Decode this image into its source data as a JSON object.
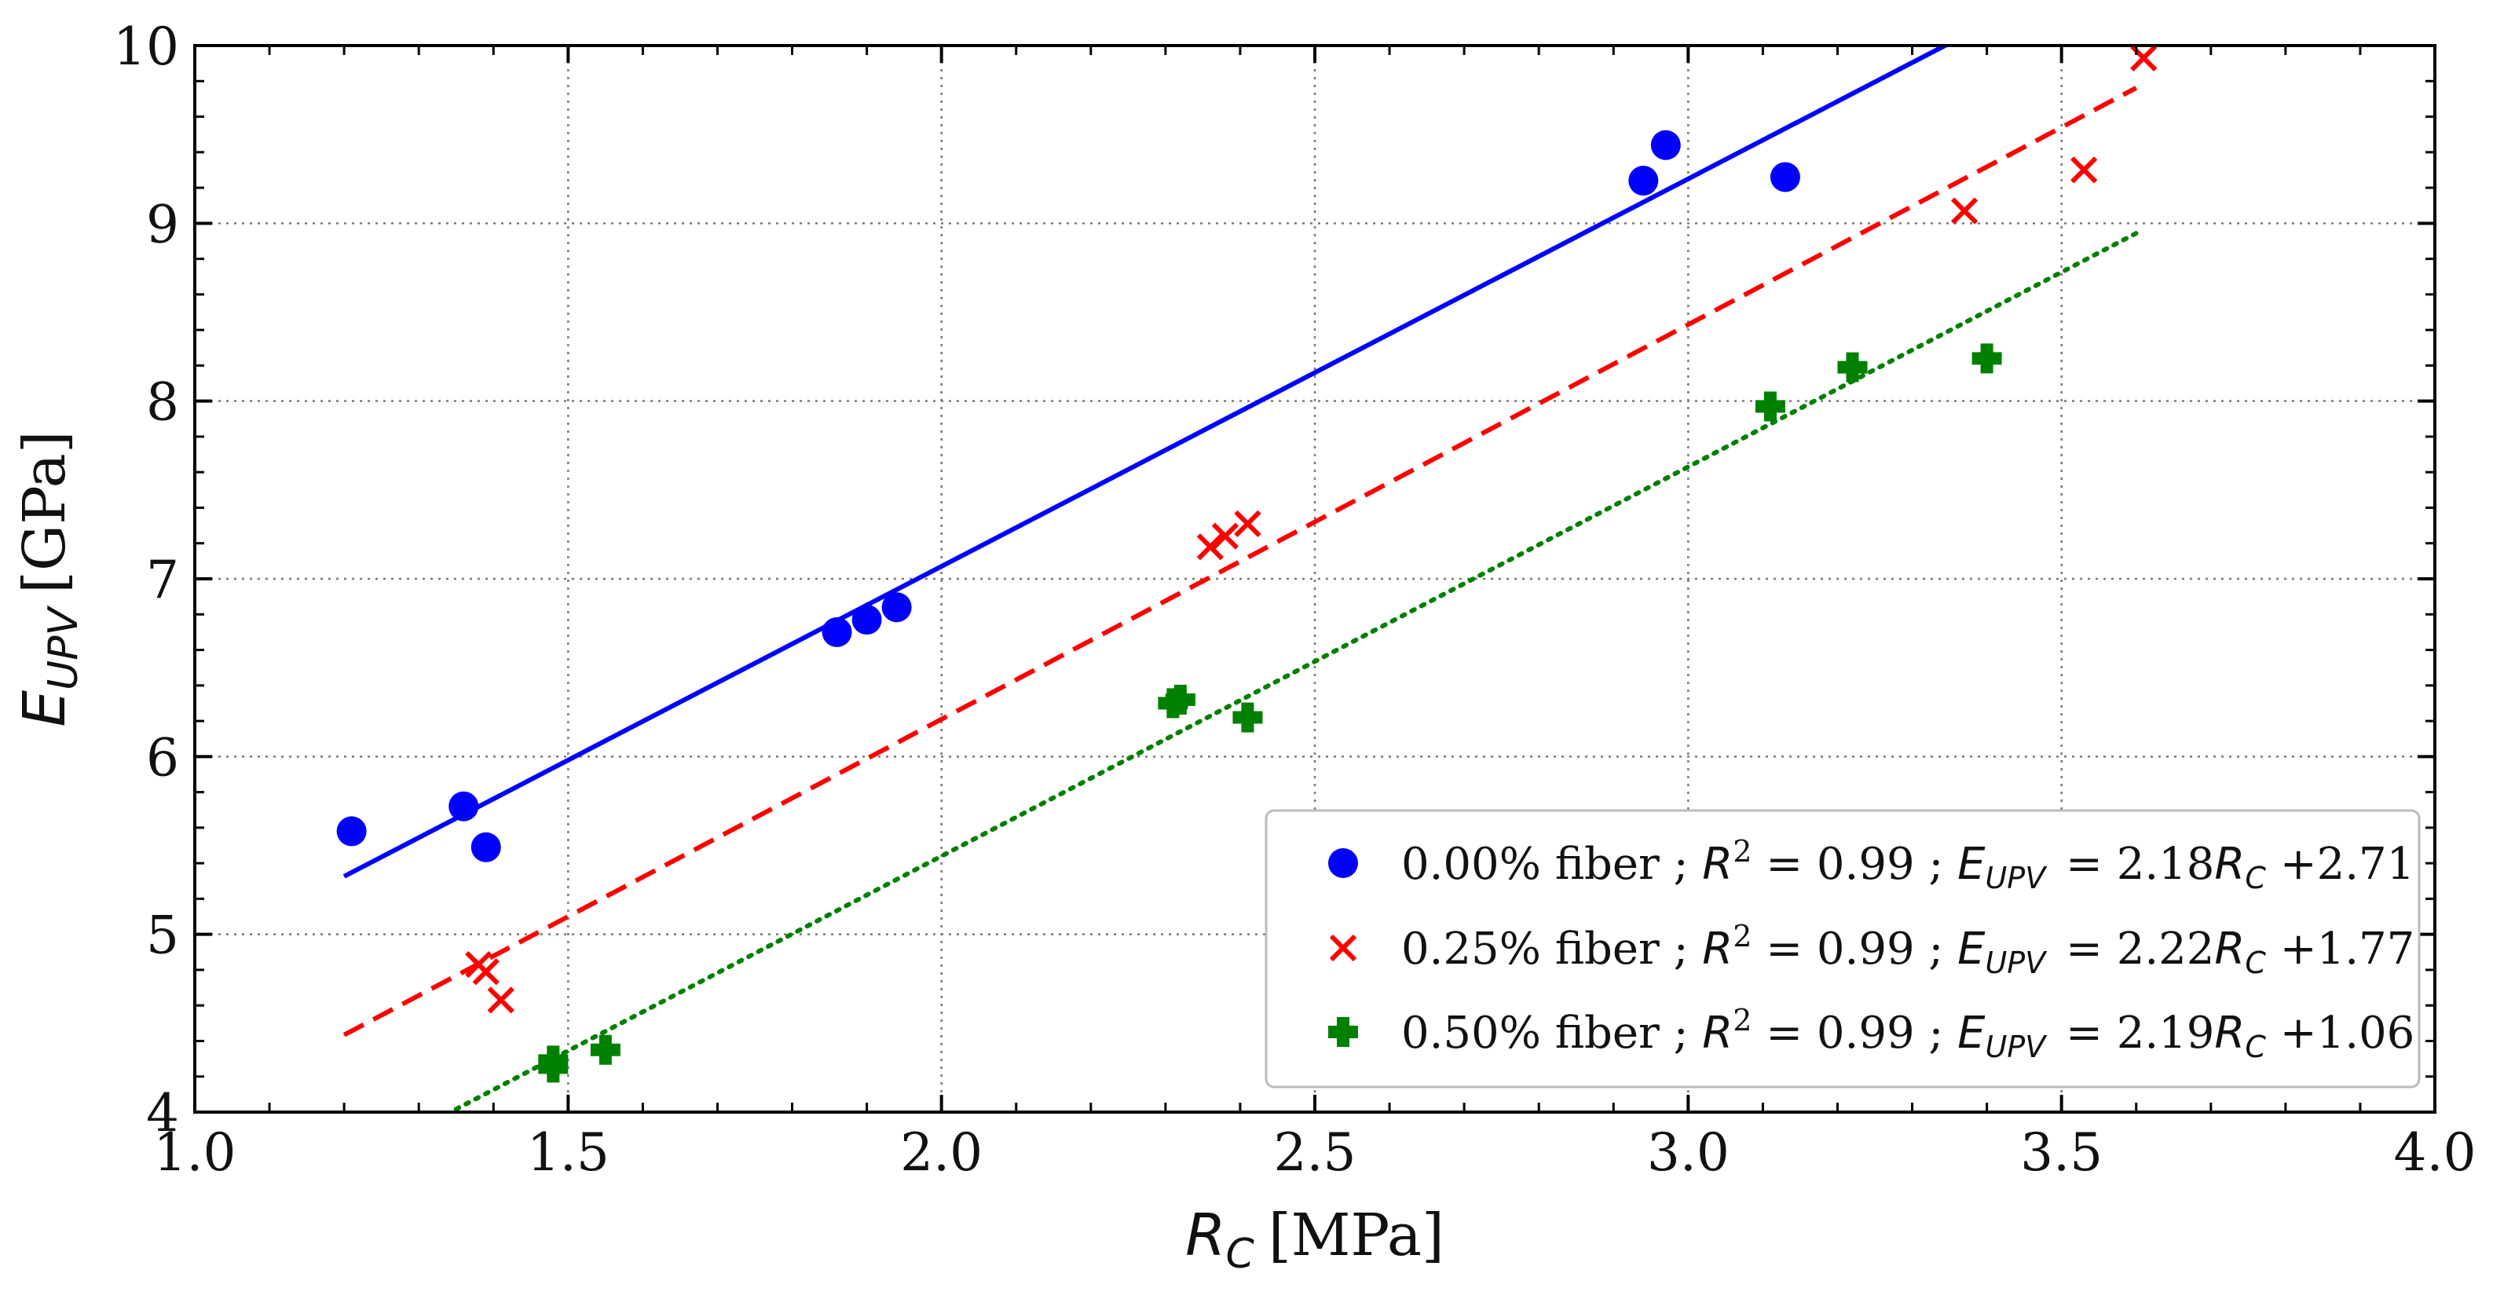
{
  "chart_data": {
    "type": "scatter",
    "title": "",
    "xlabel": {
      "symbol": "R",
      "sub": "C",
      "unit": "[MPa]"
    },
    "ylabel": {
      "symbol": "E",
      "sub": "UPV",
      "unit": "[GPa]"
    },
    "xlim": [
      1.0,
      4.0
    ],
    "ylim": [
      4,
      10
    ],
    "xticks": [
      1.0,
      1.5,
      2.0,
      2.5,
      3.0,
      3.5,
      4.0
    ],
    "xtick_labels": [
      "1.0",
      "1.5",
      "2.0",
      "2.5",
      "3.0",
      "3.5",
      "4.0"
    ],
    "yticks": [
      4,
      5,
      6,
      7,
      8,
      9,
      10
    ],
    "ytick_labels": [
      "4",
      "5",
      "6",
      "7",
      "8",
      "9",
      "10"
    ],
    "grid": true,
    "legend_position": "bottom-right",
    "series": [
      {
        "name": "0.00% fiber",
        "marker": "circle",
        "color": "#0000ff",
        "line_style": "solid",
        "fit": {
          "slope": 2.18,
          "intercept": 2.71,
          "x_range": [
            1.2,
            3.37
          ]
        },
        "legend": {
          "prefix": "0.00% fiber ; ",
          "r_sym": "R",
          "r_sup": "2",
          "r_val": " = 0.99 ; ",
          "e_sym": "E",
          "e_sub": "UPV",
          "eq_mid": " = 2.18",
          "rc_sym": "R",
          "rc_sub": "C",
          "eq_end": " +2.71"
        },
        "x": [
          1.21,
          1.36,
          1.39,
          1.86,
          1.9,
          1.94,
          2.94,
          2.97,
          3.13
        ],
        "y": [
          5.58,
          5.72,
          5.49,
          6.7,
          6.77,
          6.84,
          9.24,
          9.44,
          9.26
        ]
      },
      {
        "name": "0.25% fiber",
        "marker": "x",
        "color": "#ff0000",
        "line_style": "dashed",
        "fit": {
          "slope": 2.22,
          "intercept": 1.77,
          "x_range": [
            1.2,
            3.6
          ]
        },
        "legend": {
          "prefix": "0.25% fiber ; ",
          "r_sym": "R",
          "r_sup": "2",
          "r_val": " = 0.99 ; ",
          "e_sym": "E",
          "e_sub": "UPV",
          "eq_mid": " = 2.22",
          "rc_sym": "R",
          "rc_sub": "C",
          "eq_end": " +1.77"
        },
        "x": [
          1.38,
          1.39,
          1.41,
          2.36,
          2.38,
          2.41,
          3.37,
          3.53,
          3.61
        ],
        "y": [
          4.83,
          4.79,
          4.63,
          7.18,
          7.24,
          7.31,
          9.07,
          9.3,
          9.93
        ]
      },
      {
        "name": "0.50% fiber",
        "marker": "plus",
        "color": "#008000",
        "line_style": "dotted",
        "fit": {
          "slope": 2.19,
          "intercept": 1.06,
          "x_range": [
            1.35,
            3.6
          ]
        },
        "legend": {
          "prefix": "0.50% fiber ; ",
          "r_sym": "R",
          "r_sup": "2",
          "r_val": " = 0.99 ; ",
          "e_sym": "E",
          "e_sub": "UPV",
          "eq_mid": " = 2.19",
          "rc_sym": "R",
          "rc_sub": "C",
          "eq_end": " +1.06"
        },
        "x": [
          1.48,
          1.48,
          1.55,
          2.31,
          2.32,
          2.41,
          3.11,
          3.22,
          3.4
        ],
        "y": [
          4.29,
          4.25,
          4.35,
          6.3,
          6.32,
          6.22,
          7.97,
          8.19,
          8.24
        ]
      }
    ]
  }
}
